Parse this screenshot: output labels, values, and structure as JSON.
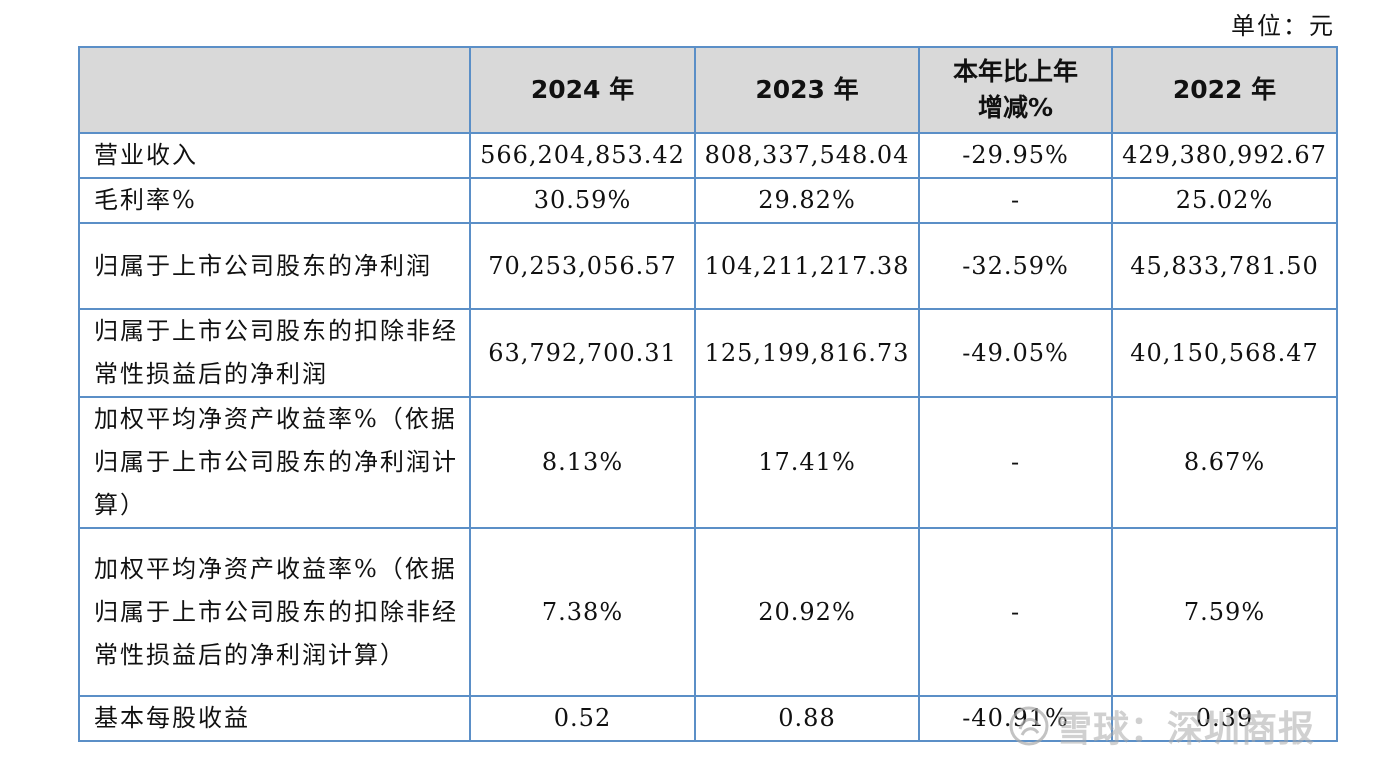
{
  "unit_label": "单位：元",
  "table": {
    "headers": [
      "",
      "2024 年",
      "2023 年",
      "本年比上年增减%",
      "2022 年"
    ],
    "rows": [
      {
        "label": "营业收入",
        "v2024": "566,204,853.42",
        "v2023": "808,337,548.04",
        "change": "-29.95%",
        "v2022": "429,380,992.67"
      },
      {
        "label": "毛利率%",
        "v2024": "30.59%",
        "v2023": "29.82%",
        "change": "-",
        "v2022": "25.02%"
      },
      {
        "label": "归属于上市公司股东的净利润",
        "v2024": "70,253,056.57",
        "v2023": "104,211,217.38",
        "change": "-32.59%",
        "v2022": "45,833,781.50"
      },
      {
        "label": "归属于上市公司股东的扣除非经常性损益后的净利润",
        "v2024": "63,792,700.31",
        "v2023": "125,199,816.73",
        "change": "-49.05%",
        "v2022": "40,150,568.47"
      },
      {
        "label": "加权平均净资产收益率%（依据归属于上市公司股东的净利润计算）",
        "v2024": "8.13%",
        "v2023": "17.41%",
        "change": "-",
        "v2022": "8.67%"
      },
      {
        "label": "加权平均净资产收益率%（依据归属于上市公司股东的扣除非经常性损益后的净利润计算）",
        "v2024": "7.38%",
        "v2023": "20.92%",
        "change": "-",
        "v2022": "7.59%"
      },
      {
        "label": "基本每股收益",
        "v2024": "0.52",
        "v2023": "0.88",
        "change": "-40.91%",
        "v2022": "0.39"
      }
    ]
  },
  "watermark": {
    "text": "雪球：深圳商报",
    "icon": "snowball-logo-icon"
  }
}
